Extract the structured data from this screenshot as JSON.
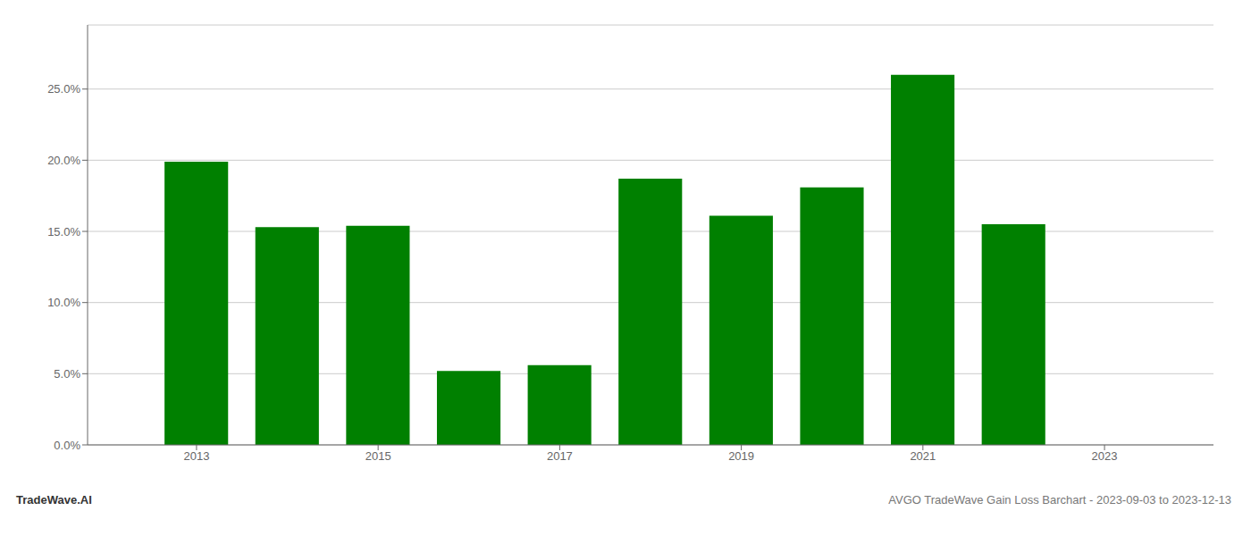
{
  "chart_data": {
    "type": "bar",
    "title": "AVGO TradeWave Gain Loss Barchart - 2023-09-03 to 2023-12-13",
    "annotations": [
      "TradeWave.AI"
    ],
    "x": [
      2013,
      2014,
      2015,
      2016,
      2017,
      2018,
      2019,
      2020,
      2021,
      2022,
      2023
    ],
    "values": [
      0.199,
      0.153,
      0.154,
      0.052,
      0.056,
      0.187,
      0.161,
      0.181,
      0.26,
      0.155,
      0.0
    ],
    "color": "#008000",
    "xlim": [
      2011.8,
      2024.2
    ],
    "xticks": [
      2013,
      2015,
      2017,
      2019,
      2021,
      2023
    ],
    "ylim": [
      0,
      0.295
    ],
    "yticks": [
      {
        "value": 0.0,
        "label": "0.0%"
      },
      {
        "value": 0.05,
        "label": "5.0%"
      },
      {
        "value": 0.1,
        "label": "10.0%"
      },
      {
        "value": 0.15,
        "label": "15.0%"
      },
      {
        "value": 0.2,
        "label": "20.0%"
      },
      {
        "value": 0.25,
        "label": "25.0%"
      }
    ],
    "grid": true
  }
}
